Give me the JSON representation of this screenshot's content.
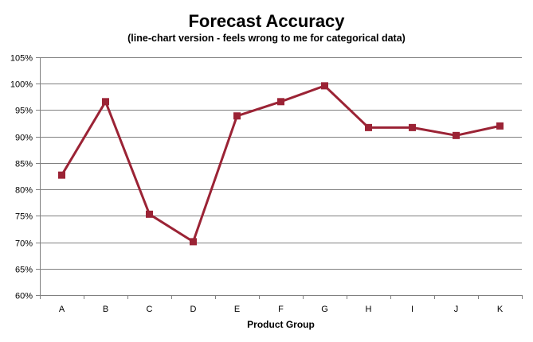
{
  "chart_data": {
    "type": "line",
    "title": "Forecast Accuracy",
    "subtitle": "(line-chart version - feels wrong to me for categorical data)",
    "xlabel": "Product Group",
    "ylabel": "",
    "categories": [
      "A",
      "B",
      "C",
      "D",
      "E",
      "F",
      "G",
      "H",
      "I",
      "J",
      "K"
    ],
    "values": [
      0.827,
      0.966,
      0.753,
      0.701,
      0.939,
      0.966,
      0.996,
      0.917,
      0.917,
      0.902,
      0.92
    ],
    "ylim": [
      0.6,
      1.05
    ],
    "yticks": [
      "60%",
      "65%",
      "70%",
      "75%",
      "80%",
      "85%",
      "90%",
      "95%",
      "100%",
      "105%"
    ],
    "grid": true,
    "legend": "none",
    "line_color": "#9B2335",
    "grid_color": "#808080"
  }
}
